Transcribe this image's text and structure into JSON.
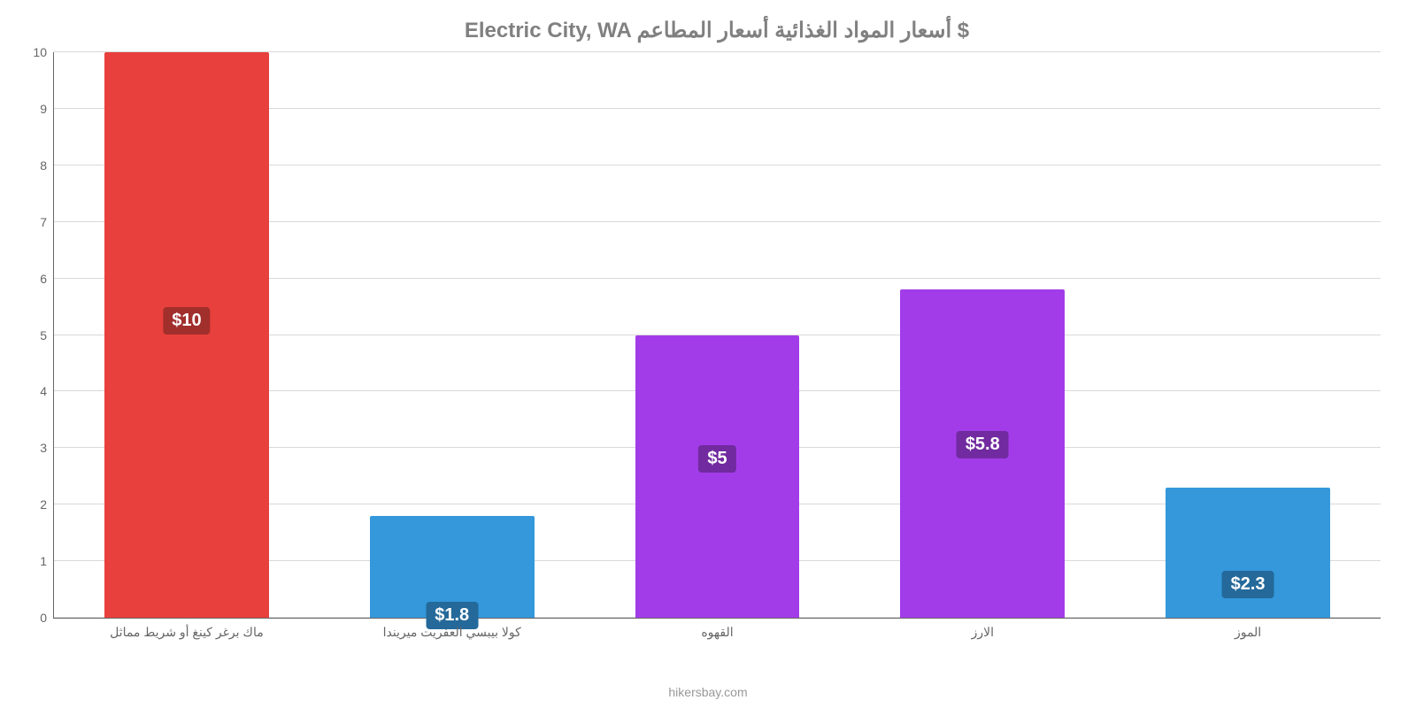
{
  "chart": {
    "type": "bar",
    "title": "Electric City, WA أسعار المواد الغذائية أسعار المطاعم $",
    "title_color": "#808080",
    "title_fontsize": 24,
    "background_color": "#ffffff",
    "grid_color": "#d9d9d9",
    "axis_color": "#666666",
    "bar_width_pct": 62,
    "ylim": [
      0,
      10
    ],
    "ytick_step": 1,
    "ytick_fontsize": 14,
    "ytick_color": "#666666",
    "xtick_fontsize": 14,
    "xtick_color": "#666666",
    "value_label_fontsize": 20,
    "categories": [
      "ماك برغر كينغ أو شريط مماثل",
      "كولا بيبسي العفريت ميريندا",
      "القهوه",
      "الارز",
      "الموز"
    ],
    "values": [
      10,
      1.8,
      5,
      5.8,
      2.3
    ],
    "value_labels": [
      "$10",
      "$1.8",
      "$5",
      "$5.8",
      "$2.3"
    ],
    "bar_colors": [
      "#e8403c",
      "#3498db",
      "#a23ce8",
      "#a23ce8",
      "#3498db"
    ],
    "value_label_bg": [
      "#a12f2c",
      "#24699a",
      "#712a9f",
      "#712a9f",
      "#24699a"
    ],
    "value_label_position_pct": [
      45,
      84,
      39,
      43,
      64
    ],
    "footer": "hikersbay.com",
    "footer_color": "#999999",
    "footer_fontsize": 14
  }
}
